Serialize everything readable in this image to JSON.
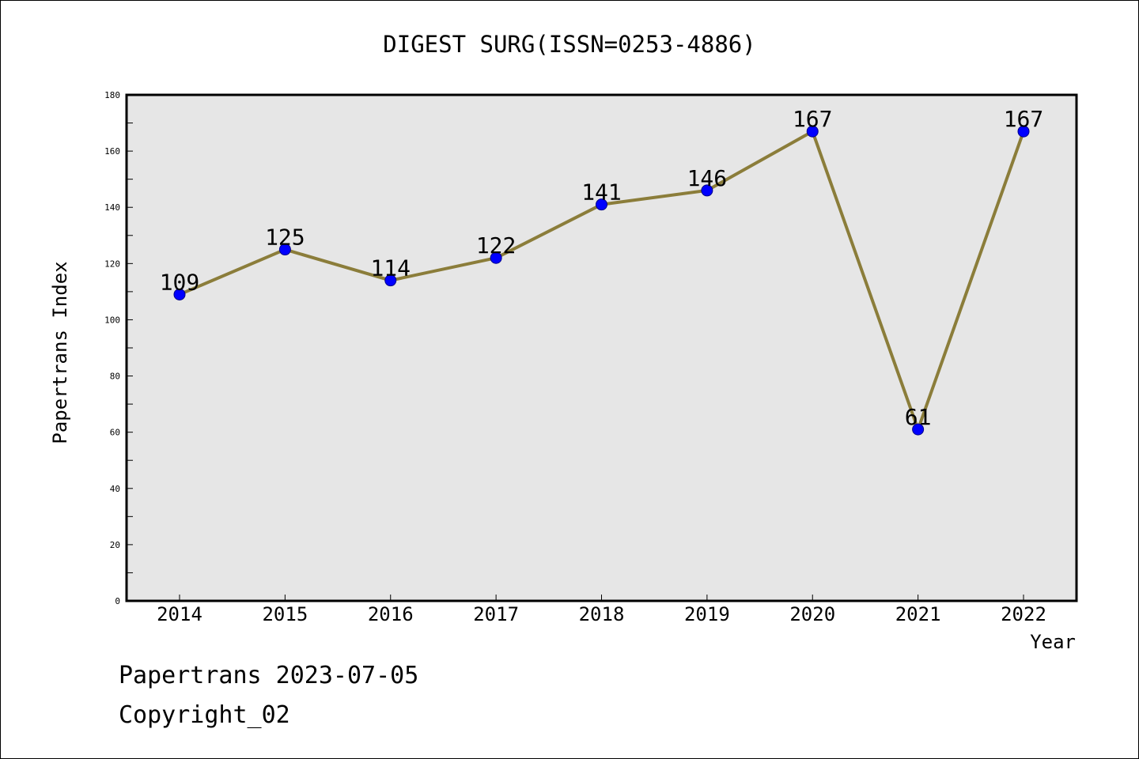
{
  "chart_data": {
    "type": "line",
    "title": "DIGEST SURG(ISSN=0253-4886)",
    "xlabel": "Year",
    "ylabel": "Papertrans Index",
    "categories": [
      "2014",
      "2015",
      "2016",
      "2017",
      "2018",
      "2019",
      "2020",
      "2021",
      "2022"
    ],
    "series": [
      {
        "values": [
          109,
          125,
          114,
          122,
          141,
          146,
          167,
          61,
          167
        ]
      }
    ],
    "ylim": [
      0,
      180
    ],
    "yticks": [
      "0",
      "20",
      "40",
      "60",
      "80",
      "100",
      "120",
      "140",
      "160",
      "180"
    ],
    "data_labels": [
      "109",
      "125",
      "114",
      "122",
      "141",
      "146",
      "167",
      "61",
      "167"
    ],
    "grid": false,
    "legend": "none",
    "colors": {
      "line": "#8b7d3a",
      "marker": "#0000ff",
      "plot_bg": "#e6e6e6"
    }
  },
  "footer": {
    "line1": "Papertrans 2023-07-05",
    "line2": "Copyright_02"
  }
}
